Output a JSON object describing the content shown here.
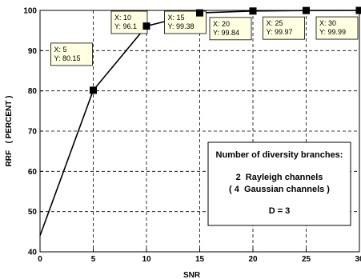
{
  "chart_data": {
    "type": "line",
    "xlabel": "SNR",
    "ylabel": "RRF   ( PERCENT )",
    "xlim": [
      0,
      30
    ],
    "ylim": [
      40,
      100
    ],
    "xticks": [
      "0",
      "5",
      "10",
      "15",
      "20",
      "25",
      "30"
    ],
    "yticks": [
      "40",
      "50",
      "60",
      "70",
      "80",
      "90",
      "100"
    ],
    "grid": true,
    "series": [
      {
        "x": [
          0,
          5,
          10,
          15,
          20,
          25,
          30
        ],
        "y": [
          44,
          80.15,
          96.1,
          99.38,
          99.84,
          99.97,
          99.99
        ]
      }
    ],
    "annotations": [
      {
        "x": 5,
        "y": 80.15,
        "x_text": "X: 5",
        "y_text": "Y: 80.15"
      },
      {
        "x": 10,
        "y": 96.1,
        "x_text": "X: 10",
        "y_text": "Y: 96.1"
      },
      {
        "x": 15,
        "y": 99.38,
        "x_text": "X: 15",
        "y_text": "Y: 99.38"
      },
      {
        "x": 20,
        "y": 99.84,
        "x_text": "X: 20",
        "y_text": "Y: 99.84"
      },
      {
        "x": 25,
        "y": 99.97,
        "x_text": "X: 25",
        "y_text": "Y: 99.97"
      },
      {
        "x": 30,
        "y": 99.99,
        "x_text": "X: 30",
        "y_text": "Y: 99.99"
      }
    ],
    "textbox": {
      "lines": [
        "Number of diversity branches:",
        "2  Rayleigh channels",
        "( 4  Gaussian channels )",
        "D = 3"
      ]
    }
  }
}
